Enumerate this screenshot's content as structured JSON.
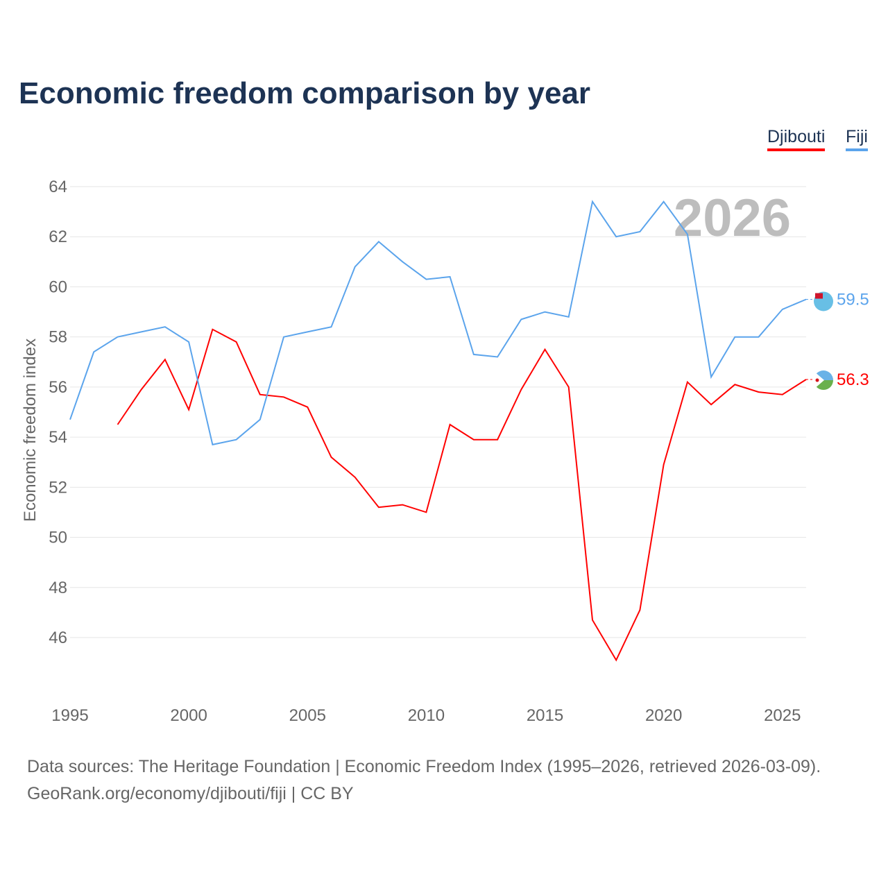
{
  "title": "Economic freedom comparison by year",
  "legend": [
    "Djibouti",
    "Fiji"
  ],
  "footer": {
    "line1": "Data sources: The Heritage Foundation | Economic Freedom Index (1995–2026, retrieved 2026-03-09).",
    "line2": "GeoRank.org/economy/djibouti/fiji | CC BY"
  },
  "chart_data": {
    "type": "line",
    "title": "Economic freedom comparison by year",
    "xlabel": "",
    "ylabel": "Economic freedom index",
    "year_watermark": "2026",
    "xlim": [
      1995,
      2026
    ],
    "ylim": [
      44,
      64
    ],
    "xticks": [
      1995,
      2000,
      2005,
      2010,
      2015,
      2020,
      2025
    ],
    "yticks": [
      46,
      48,
      50,
      52,
      54,
      56,
      58,
      60,
      62,
      64
    ],
    "grid": true,
    "legend_position": "top-right",
    "x": [
      1995,
      1996,
      1997,
      1998,
      1999,
      2000,
      2001,
      2002,
      2003,
      2004,
      2005,
      2006,
      2007,
      2008,
      2009,
      2010,
      2011,
      2012,
      2013,
      2014,
      2015,
      2016,
      2017,
      2018,
      2019,
      2020,
      2021,
      2022,
      2023,
      2024,
      2025,
      2026
    ],
    "series": [
      {
        "name": "Djibouti",
        "color": "#ff0000",
        "end_label": "56.3",
        "values": [
          null,
          null,
          54.5,
          55.9,
          57.1,
          55.1,
          58.3,
          57.8,
          55.7,
          55.6,
          55.2,
          53.2,
          52.4,
          51.2,
          51.3,
          51.0,
          54.5,
          53.9,
          53.9,
          55.9,
          57.5,
          56.0,
          46.7,
          45.1,
          47.1,
          52.9,
          56.2,
          55.3,
          56.1,
          55.8,
          55.7,
          56.3
        ]
      },
      {
        "name": "Fiji",
        "color": "#5ba4ec",
        "end_label": "59.5",
        "values": [
          54.7,
          57.4,
          58.0,
          58.2,
          58.4,
          57.8,
          53.7,
          53.9,
          54.7,
          58.0,
          58.2,
          58.4,
          60.8,
          61.8,
          61.0,
          60.3,
          60.4,
          57.3,
          57.2,
          58.7,
          59.0,
          58.8,
          63.4,
          62.0,
          62.2,
          63.4,
          62.1,
          56.4,
          58.0,
          58.0,
          59.1,
          59.5
        ]
      }
    ]
  }
}
